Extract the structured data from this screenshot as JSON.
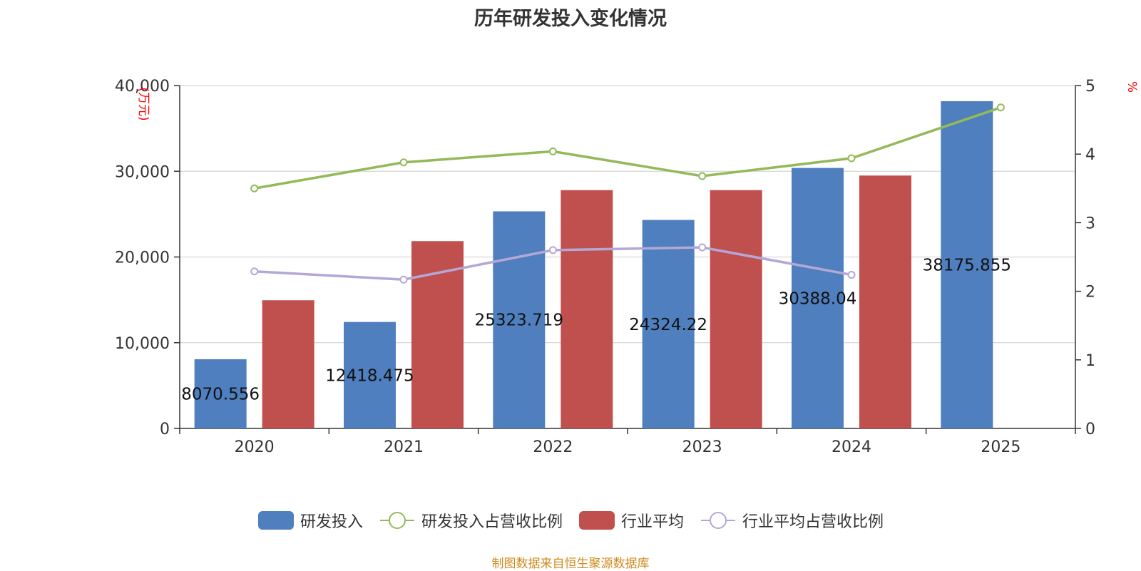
{
  "title": "历年研发投入变化情况",
  "source_note": "制图数据来自恒生聚源数据库",
  "colors": {
    "rd_investment": "#4f7fbf",
    "rd_ratio": "#93b958",
    "industry_avg": "#c0504d",
    "industry_ratio": "#b4a7d6",
    "axis_unit": "#ff0000",
    "title": "#333333",
    "source": "#d08a1c"
  },
  "legend": [
    {
      "label": "研发投入",
      "kind": "bar",
      "icon": "blue-bar-swatch"
    },
    {
      "label": "研发投入占营收比例",
      "kind": "line",
      "icon": "green-line-circle"
    },
    {
      "label": "行业平均",
      "kind": "bar",
      "icon": "red-bar-swatch"
    },
    {
      "label": "行业平均占营收比例",
      "kind": "line",
      "icon": "purple-line-circle"
    }
  ],
  "chart_data": {
    "type": "bar",
    "title": "历年研发投入变化情况",
    "categories": [
      "2020",
      "2021",
      "2022",
      "2023",
      "2024",
      "2025"
    ],
    "y_left": {
      "unit_label": "万元",
      "ylim": [
        0,
        40000
      ],
      "ticks": [
        "0",
        "10,000",
        "20,000",
        "30,000",
        "40,000"
      ],
      "tick_values": [
        0,
        10000,
        20000,
        30000,
        40000
      ]
    },
    "y_right": {
      "unit_label": "%",
      "ylim": [
        0,
        5
      ],
      "ticks": [
        "0",
        "1",
        "2",
        "3",
        "4",
        "5"
      ],
      "tick_values": [
        0,
        1,
        2,
        3,
        4,
        5
      ]
    },
    "grid": true,
    "legend_position": "bottom",
    "series": [
      {
        "name": "研发投入",
        "type": "bar",
        "axis": "left",
        "values": [
          8070.556,
          12418.475,
          25323.719,
          24324.22,
          30388.04,
          38175.855
        ],
        "data_labels": [
          "8070.556",
          "12418.475",
          "25323.719",
          "24324.22",
          "30388.04",
          "38175.855"
        ]
      },
      {
        "name": "研发投入占营收比例",
        "type": "line",
        "axis": "right",
        "values": [
          3.5,
          3.88,
          4.04,
          3.68,
          3.94,
          4.68
        ]
      },
      {
        "name": "行业平均",
        "type": "bar",
        "axis": "left",
        "values": [
          14950,
          21850,
          27800,
          27800,
          29500,
          null
        ]
      },
      {
        "name": "行业平均占营收比例",
        "type": "line",
        "axis": "right",
        "values": [
          2.29,
          2.17,
          2.6,
          2.64,
          2.24,
          null
        ]
      }
    ]
  }
}
